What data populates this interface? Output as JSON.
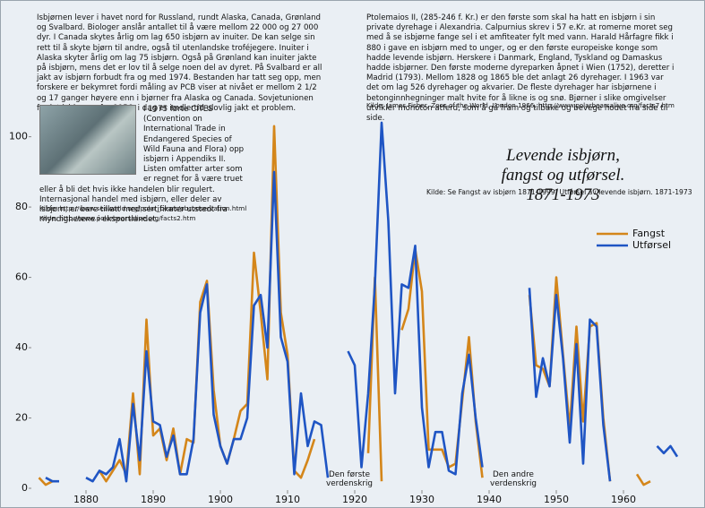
{
  "chart_data": {
    "type": "line",
    "title": "Levende isbjørn, fangst og utførsel. 1871-1973",
    "subtitle": "Kilde: Se Fangst av isbjørn 1871-1999, Utførsel av levende isbjørn. 1871-1973",
    "texts": {
      "left": "Isbjørnen lever i havet nord for Russland, rundt Alaska, Canada, Grønland og Svalbard. Biologer anslår antallet til å være mellom 22 000 og 27 000 dyr. I Canada skytes årlig om lag 650 isbjørn av inuiter. De kan selge sin rett til å skyte bjørn til andre, også til utenlandske troféjegere. Inuiter i Alaska skyter årlig om lag 75 isbjørn. Også på Grønland kan inuiter jakte på isbjørn, mens det er lov til å selge noen del av dyret. På Svalbard er all jakt av isbjørn forbudt fra og med 1974. Bestanden har tatt seg opp, men forskere er bekymret fordi måling av PCB viser at nivået er mellom 2 1/2 og 17 ganger høyere enn i bjørner fra Alaska og Canada. Sovjetunionen fredet isbjørnen fra 1956, i dag er imdlertid ulovlig jakt et problem.",
      "right": "Ptolemaios II, (285-246 f. Kr.) er den første som skal ha hatt en isbjørn i sin private dyrehage i Alexandria. Calpurnius skrev i 57 e.Kr. at romerne moret seg med å se isbjørne fange sel i et amfiteater fylt med vann. Harald Hårfagre fikk i 880 i gave en isbjørn med to unger, og er den første europeiske konge som hadde levende isbjørn. Herskere i Danmark, England, Tyskland og Damaskus hadde isbjørner. Den første moderne dyreparken åpnet i Wien (1752), deretter i Madrid (1793). Mellom 1828 og 1865 ble det anlagt 26 dyrehager. I 1963 var det om lag 526 dyrehager og akvarier. De fleste dyrehager har isbjørnene i betonginnhegninger malt hvite for å likne is og snø. Bjørner i slike omgivelser utvikler monoton atferd, som å gå fram og tilbake og bevege hodet fra side til side.",
      "right_source": "Kilde: James Fisher, Zoos of the World, London 1966, http://www.polarbearsalive.org/facts7.htm",
      "cites": "I 1975 førte CITES (Convention on International Trade in Endangered Species of Wild Fauna and Flora) opp isbjørn i Appendiks II. Listen omfatter arter som er regnet for å være truet eller å bli det hvis ikke handelen blir regulert. Internasjonal handel med isbjørn, eller deler av isbjørn, er bare tillatt med sertifikater utstedt fra myndighetene i eksportlandet.",
      "cites_source_1": "Kilde: http://www.seaworld.org/polar_bears/pbconservation.html",
      "cites_source_2": "Kilde: http://www.polarbearsalive.org/facts2.htm"
    },
    "annotations": [
      "Den første verdenskrig",
      "Den andre verdenskrig"
    ],
    "x": [
      1873,
      1874,
      1875,
      1876,
      1877,
      1878,
      1879,
      1880,
      1881,
      1882,
      1883,
      1884,
      1885,
      1886,
      1887,
      1888,
      1889,
      1890,
      1891,
      1892,
      1893,
      1894,
      1895,
      1896,
      1897,
      1898,
      1899,
      1900,
      1901,
      1902,
      1903,
      1904,
      1905,
      1906,
      1907,
      1908,
      1909,
      1910,
      1911,
      1912,
      1913,
      1914,
      1915,
      1916,
      1917,
      1918,
      1919,
      1920,
      1921,
      1922,
      1923,
      1924,
      1925,
      1926,
      1927,
      1928,
      1929,
      1930,
      1931,
      1932,
      1933,
      1934,
      1935,
      1936,
      1937,
      1938,
      1939,
      1940,
      1941,
      1942,
      1943,
      1944,
      1945,
      1946,
      1947,
      1948,
      1949,
      1950,
      1951,
      1952,
      1953,
      1954,
      1955,
      1956,
      1957,
      1958,
      1959,
      1960,
      1961,
      1962,
      1963,
      1964,
      1965,
      1966,
      1967,
      1968
    ],
    "series": [
      {
        "name": "Fangst",
        "color": "#d4861a",
        "values": [
          3,
          1,
          2,
          null,
          null,
          null,
          null,
          null,
          null,
          5,
          2,
          5,
          8,
          4,
          27,
          4,
          48,
          15,
          17,
          8,
          17,
          4,
          14,
          13,
          53,
          59,
          28,
          12,
          7,
          14,
          22,
          24,
          67,
          50,
          31,
          103,
          50,
          38,
          5,
          3,
          8,
          14,
          null,
          null,
          null,
          null,
          null,
          null,
          null,
          10,
          60,
          2,
          null,
          null,
          45,
          51,
          68,
          56,
          11,
          11,
          11,
          6,
          7,
          25,
          43,
          19,
          3,
          null,
          null,
          null,
          null,
          null,
          null,
          55,
          35,
          34,
          29,
          60,
          38,
          17,
          46,
          19,
          46,
          47,
          20,
          2,
          null,
          null,
          null,
          4,
          1,
          2,
          null,
          null,
          null,
          null
        ]
      },
      {
        "name": "Utførsel",
        "color": "#1f55c4",
        "values": [
          null,
          3,
          2,
          2,
          null,
          null,
          null,
          3,
          2,
          5,
          4,
          6,
          14,
          2,
          24,
          8,
          39,
          19,
          18,
          9,
          15,
          4,
          4,
          14,
          50,
          58,
          21,
          12,
          7,
          14,
          14,
          20,
          52,
          55,
          40,
          90,
          43,
          36,
          4,
          27,
          12,
          19,
          18,
          3,
          null,
          null,
          39,
          35,
          6,
          27,
          58,
          104,
          76,
          27,
          58,
          57,
          69,
          23,
          6,
          16,
          16,
          5,
          4,
          27,
          38,
          20,
          6,
          null,
          null,
          null,
          null,
          null,
          null,
          57,
          26,
          37,
          29,
          55,
          37,
          13,
          41,
          7,
          48,
          46,
          18,
          2,
          null,
          null,
          null,
          null,
          null,
          null,
          12,
          10,
          12,
          9
        ]
      }
    ],
    "xlim": [
      1872,
      1969
    ],
    "xticks": [
      1880,
      1890,
      1900,
      1910,
      1920,
      1930,
      1940,
      1950,
      1960
    ],
    "ylim": [
      0,
      105
    ],
    "yticks": [
      0,
      20,
      40,
      60,
      80,
      100
    ],
    "grid": false
  }
}
